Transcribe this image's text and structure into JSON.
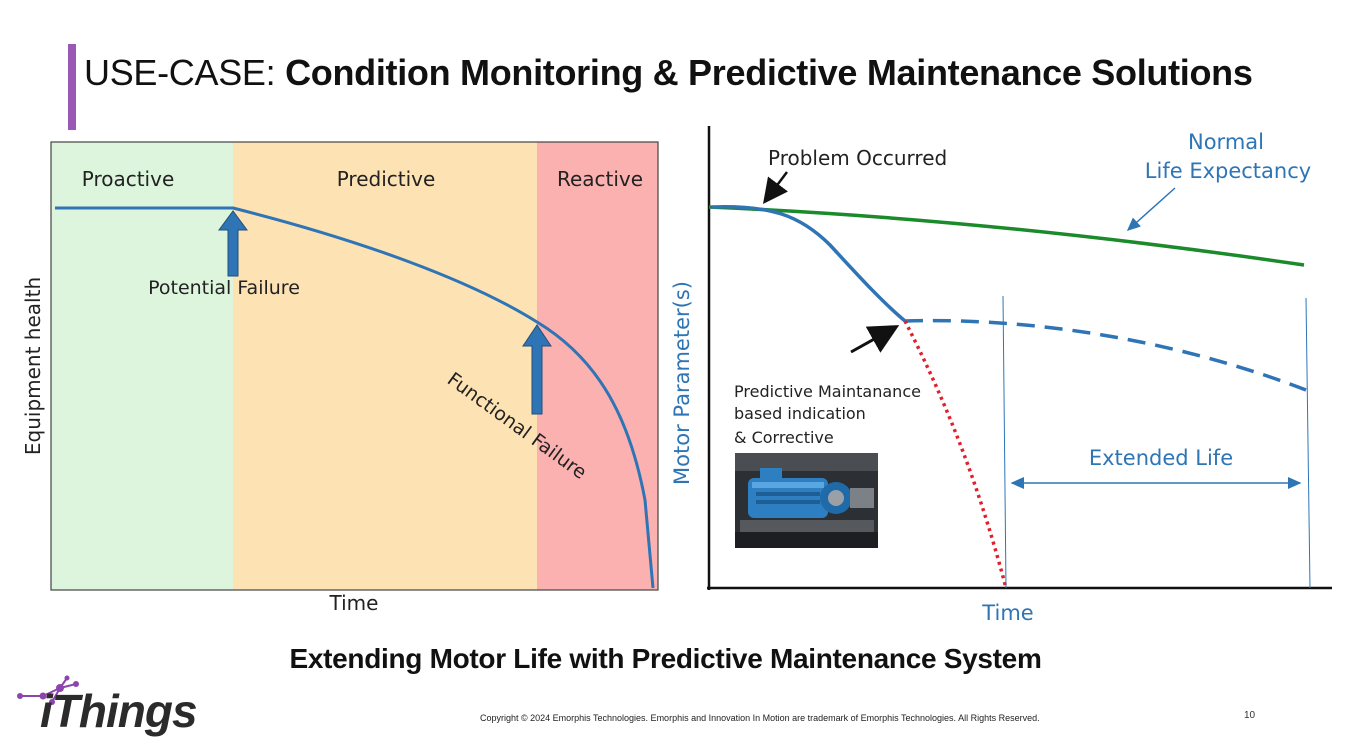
{
  "slide": {
    "title_prefix": "USE-CASE: ",
    "title_bold": "Condition Monitoring & Predictive Maintenance Solutions",
    "subtitle": "Extending Motor Life with Predictive Maintenance System",
    "copyright": "Copyright © 2024 Emorphis Technologies. Emorphis and Innovation In Motion are trademark of Emorphis Technologies. All Rights Reserved.",
    "page_number": "10",
    "logo_text": "iThings"
  },
  "left_diagram": {
    "zones": [
      "Proactive",
      "Predictive",
      "Reactive"
    ],
    "xlabel": "Time",
    "ylabel": "Equipment health",
    "annotations": {
      "potential_failure": "Potential Failure",
      "functional_failure": "Functional Failure"
    }
  },
  "right_diagram": {
    "xlabel": "Time",
    "ylabel": "Motor Parameter(s)",
    "annotations": {
      "problem": "Problem Occurred",
      "normal_line1": "Normal",
      "normal_line2": "Life Expectancy",
      "pm_line1": "Predictive Maintanance",
      "pm_line2": "based indication",
      "pm_line3": "& Corrective",
      "extended_life": "Extended Life"
    }
  },
  "colors": {
    "accent": "#9b59b6",
    "proactive": "#dcf5dc",
    "predictive": "#fde2b4",
    "reactive": "#fcb1b1",
    "health_curve": "#2f74b5",
    "normal_curve": "#1a8a2a",
    "failure_dots": "#e0202a",
    "label_blue": "#2e75b6"
  }
}
